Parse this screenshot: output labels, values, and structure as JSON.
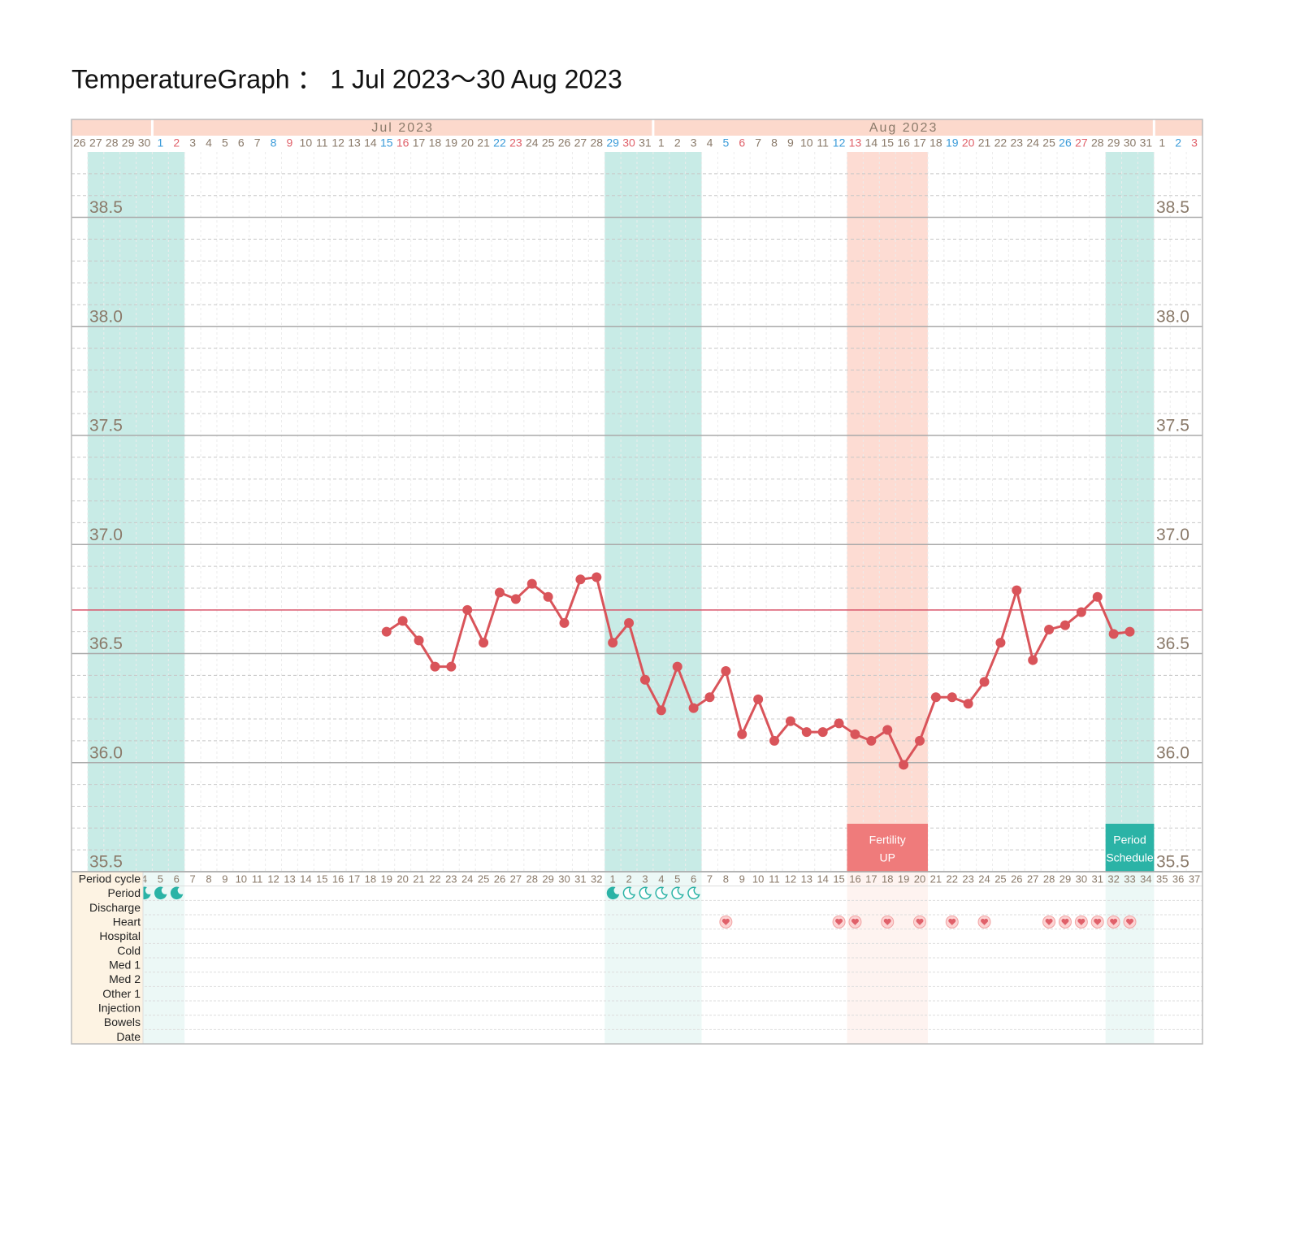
{
  "chart_data": {
    "type": "line",
    "title": "TemperatureGraph ： 1 Jul 2023～30 Aug 2023",
    "months": [
      null,
      "Jul 2023",
      "Aug 2023",
      null
    ],
    "categories": [
      "26",
      "27",
      "28",
      "29",
      "30",
      "1",
      "2",
      "3",
      "4",
      "5",
      "6",
      "7",
      "8",
      "9",
      "10",
      "11",
      "12",
      "13",
      "14",
      "15",
      "16",
      "17",
      "18",
      "19",
      "20",
      "21",
      "22",
      "23",
      "24",
      "25",
      "26",
      "27",
      "28",
      "29",
      "30",
      "31",
      "1",
      "2",
      "3",
      "4",
      "5",
      "6",
      "7",
      "8",
      "9",
      "10",
      "11",
      "12",
      "13",
      "14",
      "15",
      "16",
      "17",
      "18",
      "19",
      "20",
      "21",
      "22",
      "23",
      "24",
      "25",
      "26",
      "27",
      "28",
      "29",
      "30",
      "31",
      "1",
      "2",
      "3"
    ],
    "label_colors": [
      "#8a7a6a",
      "#8a7a6a",
      "#8a7a6a",
      "#8a7a6a",
      "#8a7a6a",
      "#3a9bd9",
      "#e0616a",
      "#8a7a6a",
      "#8a7a6a",
      "#8a7a6a",
      "#8a7a6a",
      "#8a7a6a",
      "#3a9bd9",
      "#e0616a",
      "#8a7a6a",
      "#8a7a6a",
      "#8a7a6a",
      "#8a7a6a",
      "#8a7a6a",
      "#3a9bd9",
      "#e0616a",
      "#8a7a6a",
      "#8a7a6a",
      "#8a7a6a",
      "#8a7a6a",
      "#8a7a6a",
      "#3a9bd9",
      "#e0616a",
      "#8a7a6a",
      "#8a7a6a",
      "#8a7a6a",
      "#8a7a6a",
      "#8a7a6a",
      "#3a9bd9",
      "#e0616a",
      "#8a7a6a",
      "#8a7a6a",
      "#8a7a6a",
      "#8a7a6a",
      "#8a7a6a",
      "#3a9bd9",
      "#e0616a",
      "#8a7a6a",
      "#8a7a6a",
      "#8a7a6a",
      "#8a7a6a",
      "#8a7a6a",
      "#3a9bd9",
      "#e0616a",
      "#8a7a6a",
      "#8a7a6a",
      "#8a7a6a",
      "#8a7a6a",
      "#8a7a6a",
      "#3a9bd9",
      "#e0616a",
      "#8a7a6a",
      "#8a7a6a",
      "#8a7a6a",
      "#8a7a6a",
      "#8a7a6a",
      "#3a9bd9",
      "#e0616a",
      "#8a7a6a",
      "#8a7a6a",
      "#8a7a6a",
      "#8a7a6a",
      "#8a7a6a",
      "#3a9bd9",
      "#e0616a"
    ],
    "series": [
      {
        "color": "#d9545a",
        "values": [
          null,
          null,
          null,
          null,
          null,
          null,
          null,
          null,
          null,
          null,
          null,
          null,
          null,
          null,
          null,
          null,
          null,
          null,
          null,
          36.6,
          36.65,
          36.56,
          36.44,
          36.44,
          36.7,
          36.55,
          36.78,
          36.75,
          36.82,
          36.76,
          36.64,
          36.84,
          36.85,
          36.55,
          36.64,
          36.38,
          36.24,
          36.44,
          36.25,
          36.3,
          36.42,
          36.13,
          36.29,
          36.1,
          36.19,
          36.14,
          36.14,
          36.18,
          36.13,
          36.1,
          36.15,
          35.99,
          36.1,
          36.3,
          36.3,
          36.27,
          36.37,
          36.55,
          36.79,
          36.47,
          36.61,
          36.63,
          36.69,
          36.76,
          36.59,
          36.6,
          null,
          null,
          null,
          null
        ]
      }
    ],
    "ylim": [
      35.5,
      38.8
    ],
    "yticks": [
      35.5,
      {
        "value": 36,
        "label": "36.0"
      },
      36.5,
      {
        "value": 37,
        "label": "37.0"
      },
      37.5,
      {
        "value": 38,
        "label": "38.0"
      },
      38.5
    ],
    "grid": true,
    "reference_line": {
      "value": 36.7,
      "color": "#d9546a"
    },
    "bands": [
      {
        "start": 1,
        "end": 6,
        "color": "#c8ebe6"
      },
      {
        "start": 33,
        "end": 38,
        "color": "#c8ebe6"
      },
      {
        "start": 48,
        "end": 52,
        "color": "#fddcd3",
        "label": [
          "Fertility",
          "UP"
        ],
        "label_color": "#ef7b7b"
      },
      {
        "start": 64,
        "end": 66,
        "color": "#c8ebe6",
        "label": [
          "Period",
          "Schedule"
        ],
        "label_color": "#2bb3a6"
      }
    ],
    "log": {
      "rows": [
        "Period cycle",
        "Period",
        "Discharge",
        "Heart",
        "Hospital",
        "Cold",
        "Med 1",
        "Med 2",
        "Other 1",
        "Injection",
        "Bowels",
        "Date"
      ],
      "cycle_days": [
        null,
        null,
        null,
        null,
        4,
        5,
        6,
        7,
        8,
        9,
        10,
        11,
        12,
        13,
        14,
        15,
        16,
        17,
        18,
        19,
        20,
        21,
        22,
        23,
        24,
        25,
        26,
        27,
        28,
        29,
        30,
        31,
        32,
        1,
        2,
        3,
        4,
        5,
        6,
        7,
        8,
        9,
        10,
        11,
        12,
        13,
        14,
        15,
        16,
        17,
        18,
        19,
        20,
        21,
        22,
        23,
        24,
        25,
        26,
        27,
        28,
        29,
        30,
        31,
        32,
        33,
        34,
        35,
        36,
        37
      ],
      "period_filled": [
        4,
        5,
        6,
        33
      ],
      "period_outline": [
        34,
        35,
        36,
        37,
        38
      ],
      "hearts": [
        40,
        47,
        48,
        50,
        52,
        54,
        56,
        60,
        61,
        62,
        63,
        64,
        65
      ]
    }
  }
}
